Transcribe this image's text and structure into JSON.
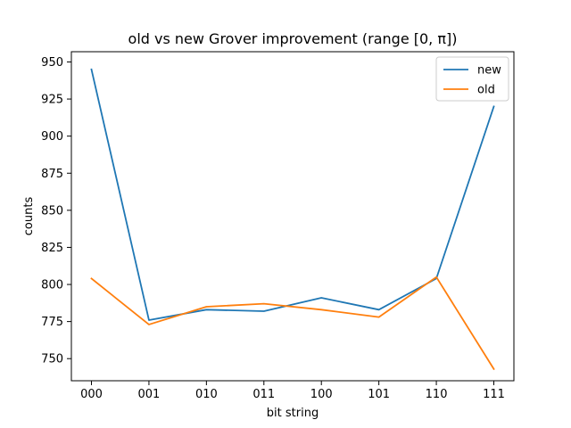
{
  "chart_data": {
    "type": "line",
    "title": "old vs new Grover improvement (range [0, π])",
    "xlabel": "bit string",
    "ylabel": "counts",
    "categories": [
      "000",
      "001",
      "010",
      "011",
      "100",
      "101",
      "110",
      "111"
    ],
    "series": [
      {
        "name": "new",
        "color": "#1f77b4",
        "values": [
          945,
          776,
          783,
          782,
          791,
          783,
          804,
          920
        ]
      },
      {
        "name": "old",
        "color": "#ff7f0e",
        "values": [
          804,
          773,
          785,
          787,
          783,
          778,
          805,
          743
        ]
      }
    ],
    "ylim": [
      735.1,
      956.9
    ],
    "yticks": [
      750,
      775,
      800,
      825,
      850,
      875,
      900,
      925,
      950
    ],
    "grid": false,
    "legend_position": "top-right"
  }
}
